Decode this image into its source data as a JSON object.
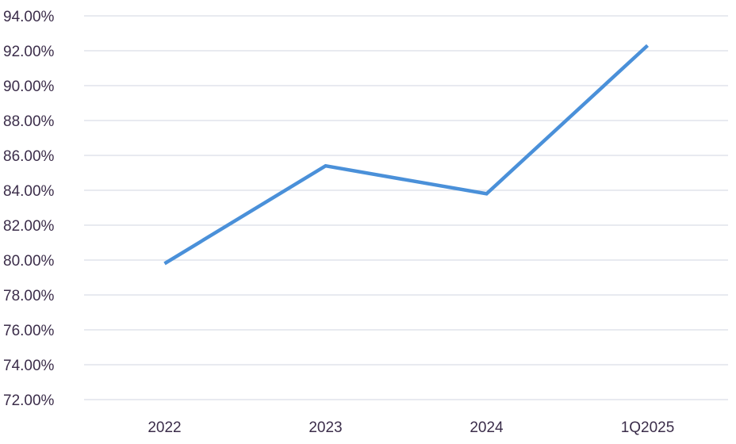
{
  "chart_data": {
    "type": "line",
    "categories": [
      "2022",
      "2023",
      "2024",
      "1Q2025"
    ],
    "series": [
      {
        "values": [
          79.8,
          85.4,
          83.8,
          92.3
        ],
        "color": "#4a90d9"
      }
    ],
    "ylim": [
      72,
      94
    ],
    "yticks": [
      "72.00%",
      "74.00%",
      "76.00%",
      "78.00%",
      "80.00%",
      "82.00%",
      "84.00%",
      "86.00%",
      "88.00%",
      "90.00%",
      "92.00%",
      "94.00%"
    ],
    "ytick_values": [
      72,
      74,
      76,
      78,
      80,
      82,
      84,
      86,
      88,
      90,
      92,
      94
    ],
    "grid": true,
    "grid_color": "#d9dde6",
    "title": "",
    "xlabel": "",
    "ylabel": ""
  }
}
